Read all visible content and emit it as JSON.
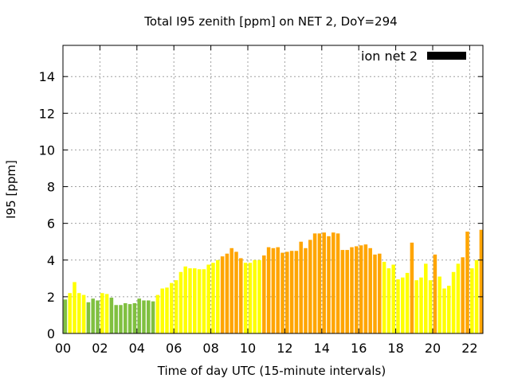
{
  "chart_data": {
    "type": "bar",
    "title": "Total I95 zenith [ppm] on NET 2, DoY=294",
    "xlabel": "Time of day UTC (15-minute intervals)",
    "ylabel": "I95 [ppm]",
    "xlim": [
      0,
      23
    ],
    "ylim": [
      0,
      15.7
    ],
    "x_unit": "hours",
    "bar_interval_hours": 0.25,
    "grid": true,
    "legend": {
      "label": "ion net 2",
      "color": "#000000",
      "placement": "top-right"
    },
    "xticks": [
      {
        "value": 0,
        "label": "00"
      },
      {
        "value": 2,
        "label": "02"
      },
      {
        "value": 4,
        "label": "04"
      },
      {
        "value": 6,
        "label": "06"
      },
      {
        "value": 8,
        "label": "08"
      },
      {
        "value": 10,
        "label": "10"
      },
      {
        "value": 12,
        "label": "12"
      },
      {
        "value": 14,
        "label": "14"
      },
      {
        "value": 16,
        "label": "16"
      },
      {
        "value": 18,
        "label": "18"
      },
      {
        "value": 20,
        "label": "20"
      },
      {
        "value": 22,
        "label": "22"
      }
    ],
    "yticks": [
      {
        "value": 0,
        "label": "0"
      },
      {
        "value": 2,
        "label": "2"
      },
      {
        "value": 4,
        "label": "4"
      },
      {
        "value": 6,
        "label": "6"
      },
      {
        "value": 8,
        "label": "8"
      },
      {
        "value": 10,
        "label": "10"
      },
      {
        "value": 12,
        "label": "12"
      },
      {
        "value": 14,
        "label": "14"
      }
    ],
    "color_classes": {
      "low": "#80c040",
      "mid": "#ffff00",
      "high": "#ffa500"
    },
    "values": [
      1.85,
      2.2,
      2.8,
      2.2,
      2.1,
      1.7,
      1.9,
      1.8,
      2.2,
      2.15,
      1.95,
      1.55,
      1.55,
      1.65,
      1.6,
      1.65,
      1.9,
      1.8,
      1.8,
      1.75,
      2.1,
      2.45,
      2.5,
      2.75,
      2.9,
      3.35,
      3.65,
      3.55,
      3.55,
      3.5,
      3.5,
      3.75,
      3.85,
      4.0,
      4.2,
      4.35,
      4.65,
      4.45,
      4.1,
      3.85,
      3.85,
      4.0,
      4.0,
      4.25,
      4.7,
      4.65,
      4.7,
      4.4,
      4.45,
      4.5,
      4.5,
      5.0,
      4.65,
      5.1,
      5.45,
      5.45,
      5.5,
      5.3,
      5.5,
      5.45,
      4.55,
      4.55,
      4.7,
      4.75,
      4.8,
      4.85,
      4.65,
      4.3,
      4.35,
      3.9,
      3.55,
      3.75,
      2.95,
      3.05,
      3.3,
      4.95,
      2.9,
      3.05,
      3.8,
      2.9,
      4.3,
      3.1,
      2.45,
      2.6,
      3.35,
      3.8,
      4.15,
      5.55,
      3.55,
      4.0,
      5.65,
      5.4
    ],
    "classes": [
      "low",
      "mid",
      "mid",
      "mid",
      "mid",
      "low",
      "low",
      "low",
      "mid",
      "mid",
      "low",
      "low",
      "low",
      "low",
      "low",
      "low",
      "low",
      "low",
      "low",
      "low",
      "mid",
      "mid",
      "mid",
      "mid",
      "mid",
      "mid",
      "mid",
      "mid",
      "mid",
      "mid",
      "mid",
      "mid",
      "mid",
      "mid",
      "high",
      "high",
      "high",
      "high",
      "high",
      "mid",
      "mid",
      "mid",
      "mid",
      "high",
      "high",
      "high",
      "high",
      "high",
      "high",
      "high",
      "high",
      "high",
      "high",
      "high",
      "high",
      "high",
      "high",
      "high",
      "high",
      "high",
      "high",
      "high",
      "high",
      "high",
      "high",
      "high",
      "high",
      "high",
      "high",
      "mid",
      "mid",
      "mid",
      "mid",
      "mid",
      "mid",
      "high",
      "mid",
      "mid",
      "mid",
      "mid",
      "high",
      "mid",
      "mid",
      "mid",
      "mid",
      "mid",
      "high",
      "high",
      "mid",
      "mid",
      "high",
      "high"
    ]
  }
}
